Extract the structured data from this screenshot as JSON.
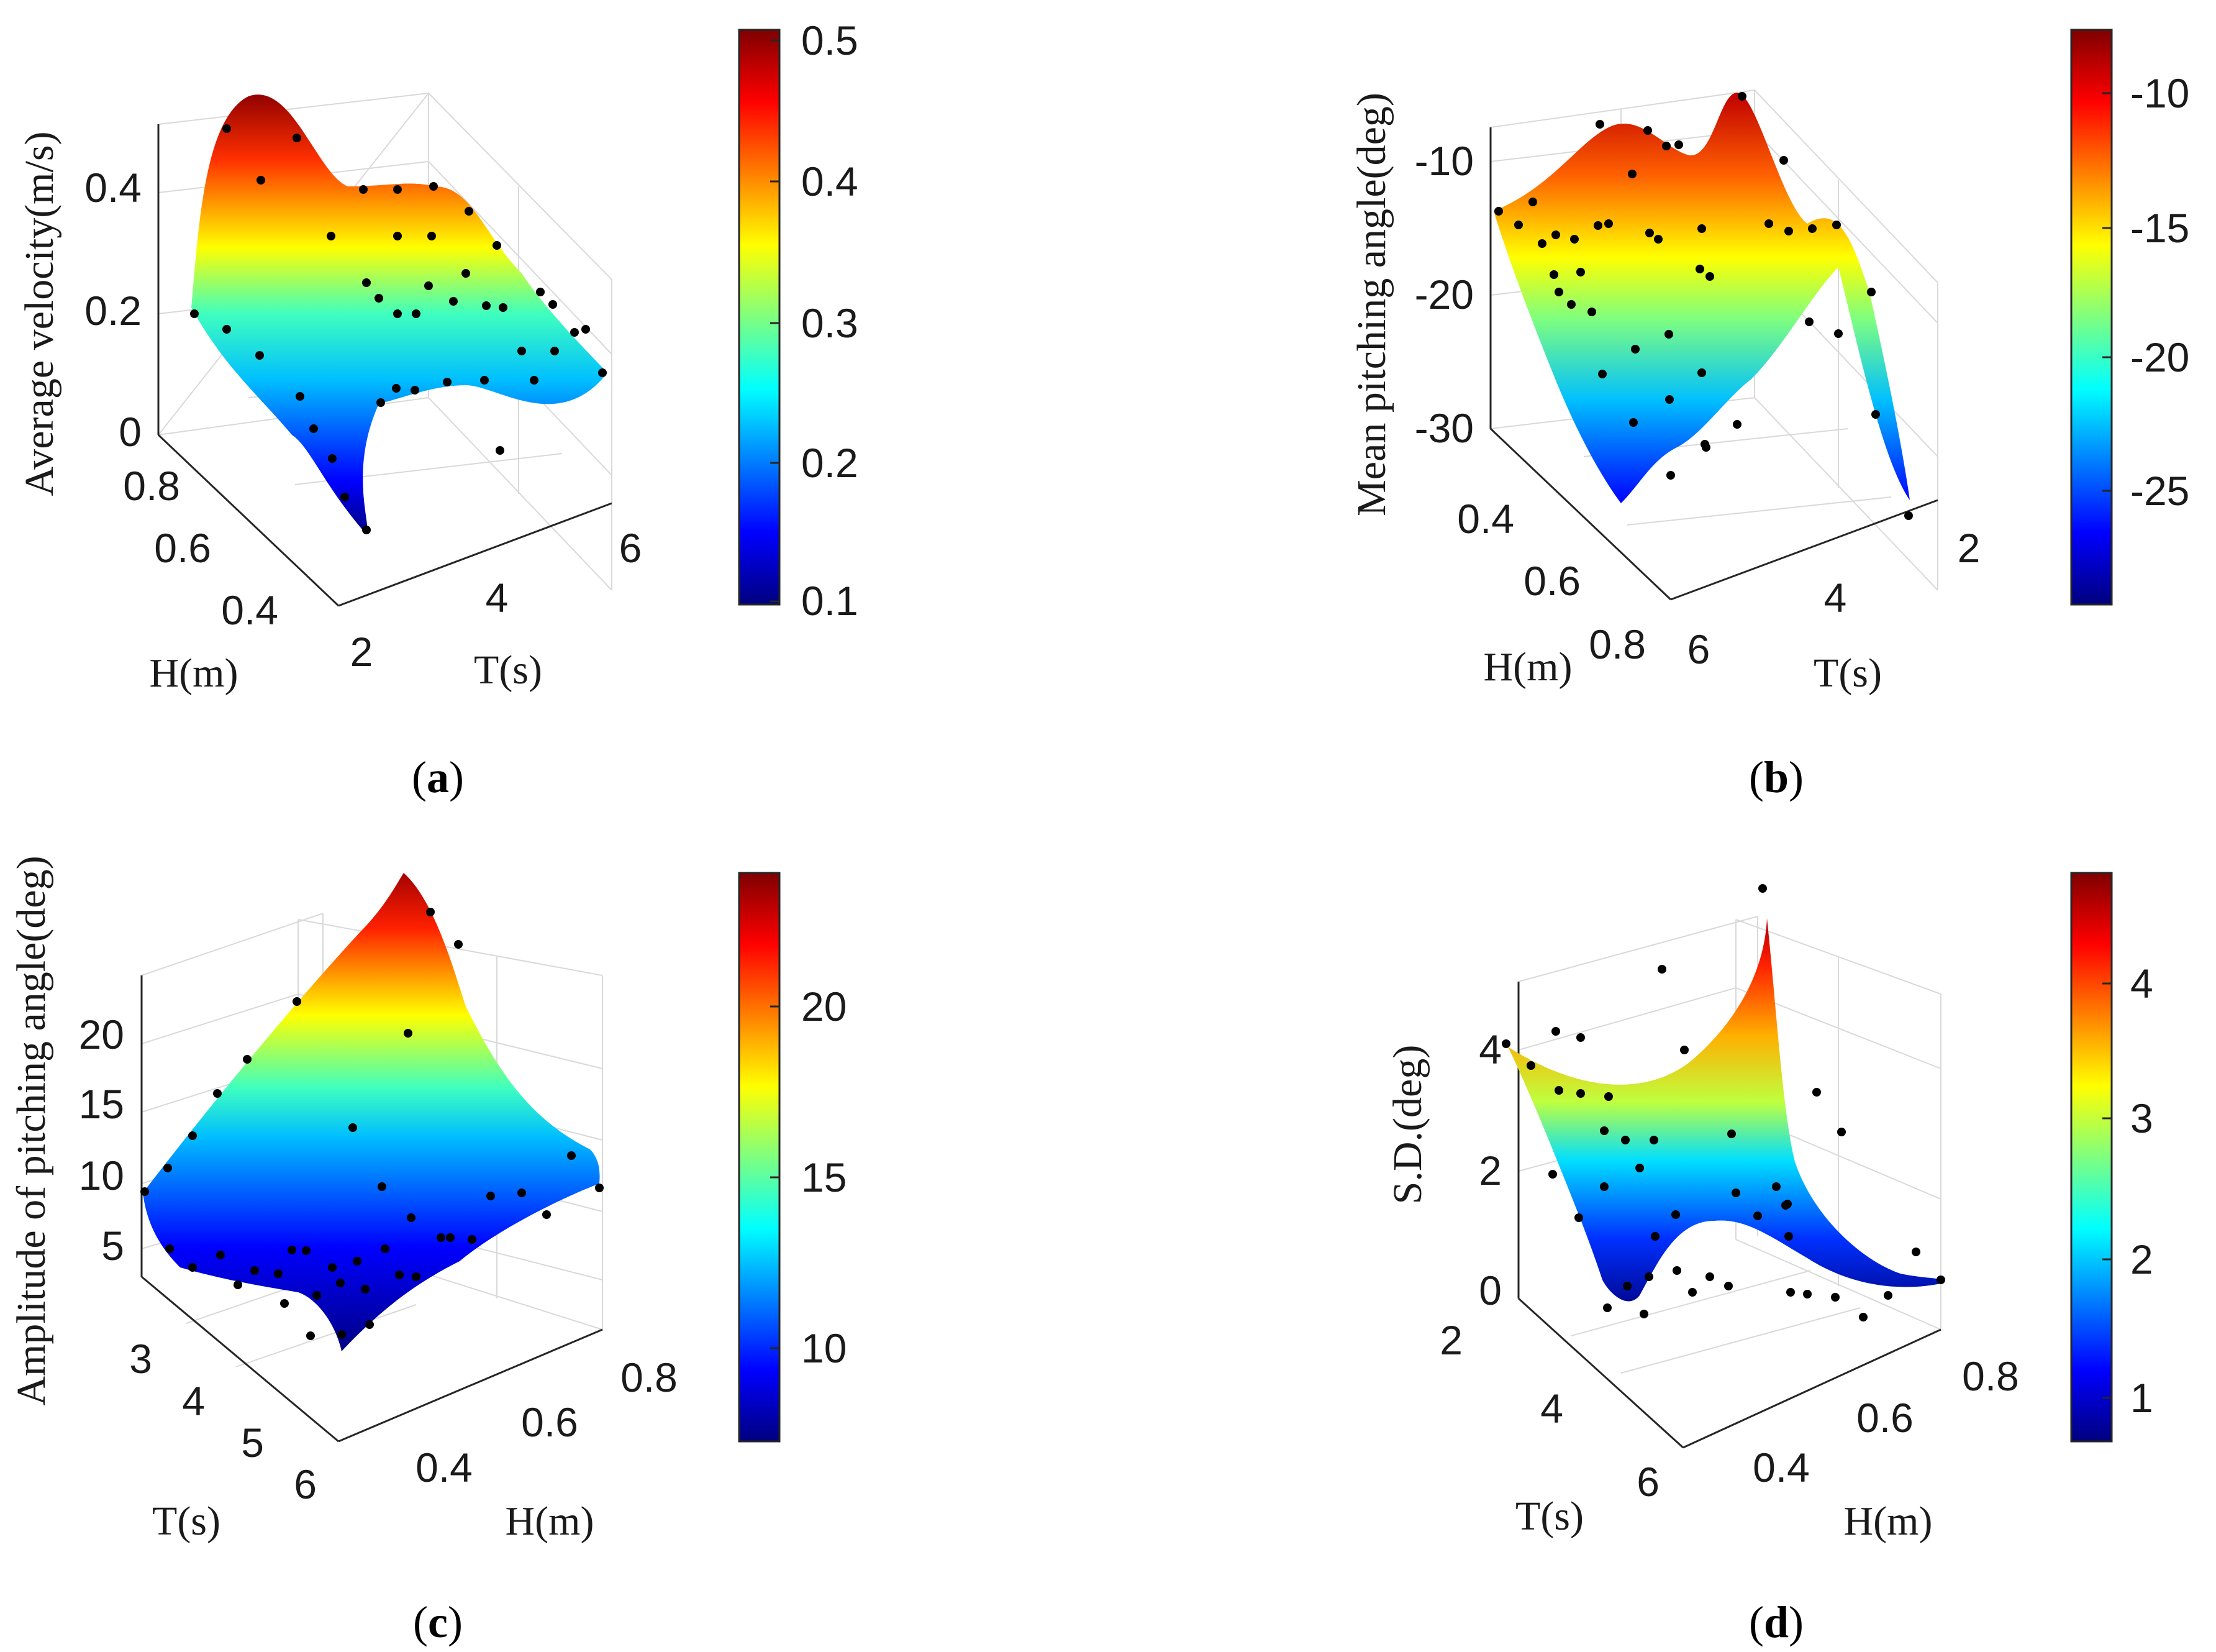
{
  "colormap": [
    "#00007f",
    "#0000ff",
    "#007fff",
    "#00ffff",
    "#7fff7f",
    "#ffff00",
    "#ff7f00",
    "#ff0000",
    "#7f0000"
  ],
  "chart_data": [
    {
      "id": "a",
      "type": "surface3d",
      "caption_letter": "a",
      "zlabel": "Average velocity(m/s)",
      "xlabel": "H(m)",
      "ylabel": "T(s)",
      "z_ticks": [
        "0",
        "0.2",
        "0.4"
      ],
      "x_ticks": [
        "0.8",
        "0.6",
        "0.4"
      ],
      "y_ticks": [
        "2",
        "4",
        "6"
      ],
      "colorbar_ticks": [
        "0.5",
        "0.4",
        "0.3",
        "0.2",
        "0.1"
      ],
      "colorbar_range": [
        0.1,
        0.5
      ]
    },
    {
      "id": "b",
      "type": "surface3d",
      "caption_letter": "b",
      "zlabel": "Mean pitching angle(deg)",
      "xlabel": "H(m)",
      "ylabel": "T(s)",
      "z_ticks": [
        "-10",
        "-20",
        "-30"
      ],
      "x_ticks": [
        "0.4",
        "0.6",
        "0.8"
      ],
      "y_ticks": [
        "6",
        "4",
        "2"
      ],
      "colorbar_ticks": [
        "-10",
        "-15",
        "-20",
        "-25"
      ],
      "colorbar_range": [
        -29,
        -8
      ]
    },
    {
      "id": "c",
      "type": "surface3d",
      "caption_letter": "c",
      "zlabel": "Amplitude of pitching angle(deg)",
      "xlabel": "T(s)",
      "ylabel": "H(m)",
      "z_ticks": [
        "20",
        "15",
        "10",
        "5"
      ],
      "x_ticks": [
        "3",
        "4",
        "5",
        "6"
      ],
      "y_ticks": [
        "0.4",
        "0.6",
        "0.8"
      ],
      "colorbar_ticks": [
        "20",
        "15",
        "10"
      ],
      "colorbar_range": [
        7,
        24
      ]
    },
    {
      "id": "d",
      "type": "surface3d",
      "caption_letter": "d",
      "zlabel": "S.D.(deg)",
      "xlabel": "T(s)",
      "ylabel": "H(m)",
      "z_ticks": [
        "4",
        "2",
        "0"
      ],
      "x_ticks": [
        "2",
        "4",
        "6"
      ],
      "y_ticks": [
        "0.4",
        "0.6",
        "0.8"
      ],
      "colorbar_ticks": [
        "4",
        "3",
        "2",
        "1"
      ],
      "colorbar_range": [
        0.7,
        4.8
      ]
    }
  ]
}
